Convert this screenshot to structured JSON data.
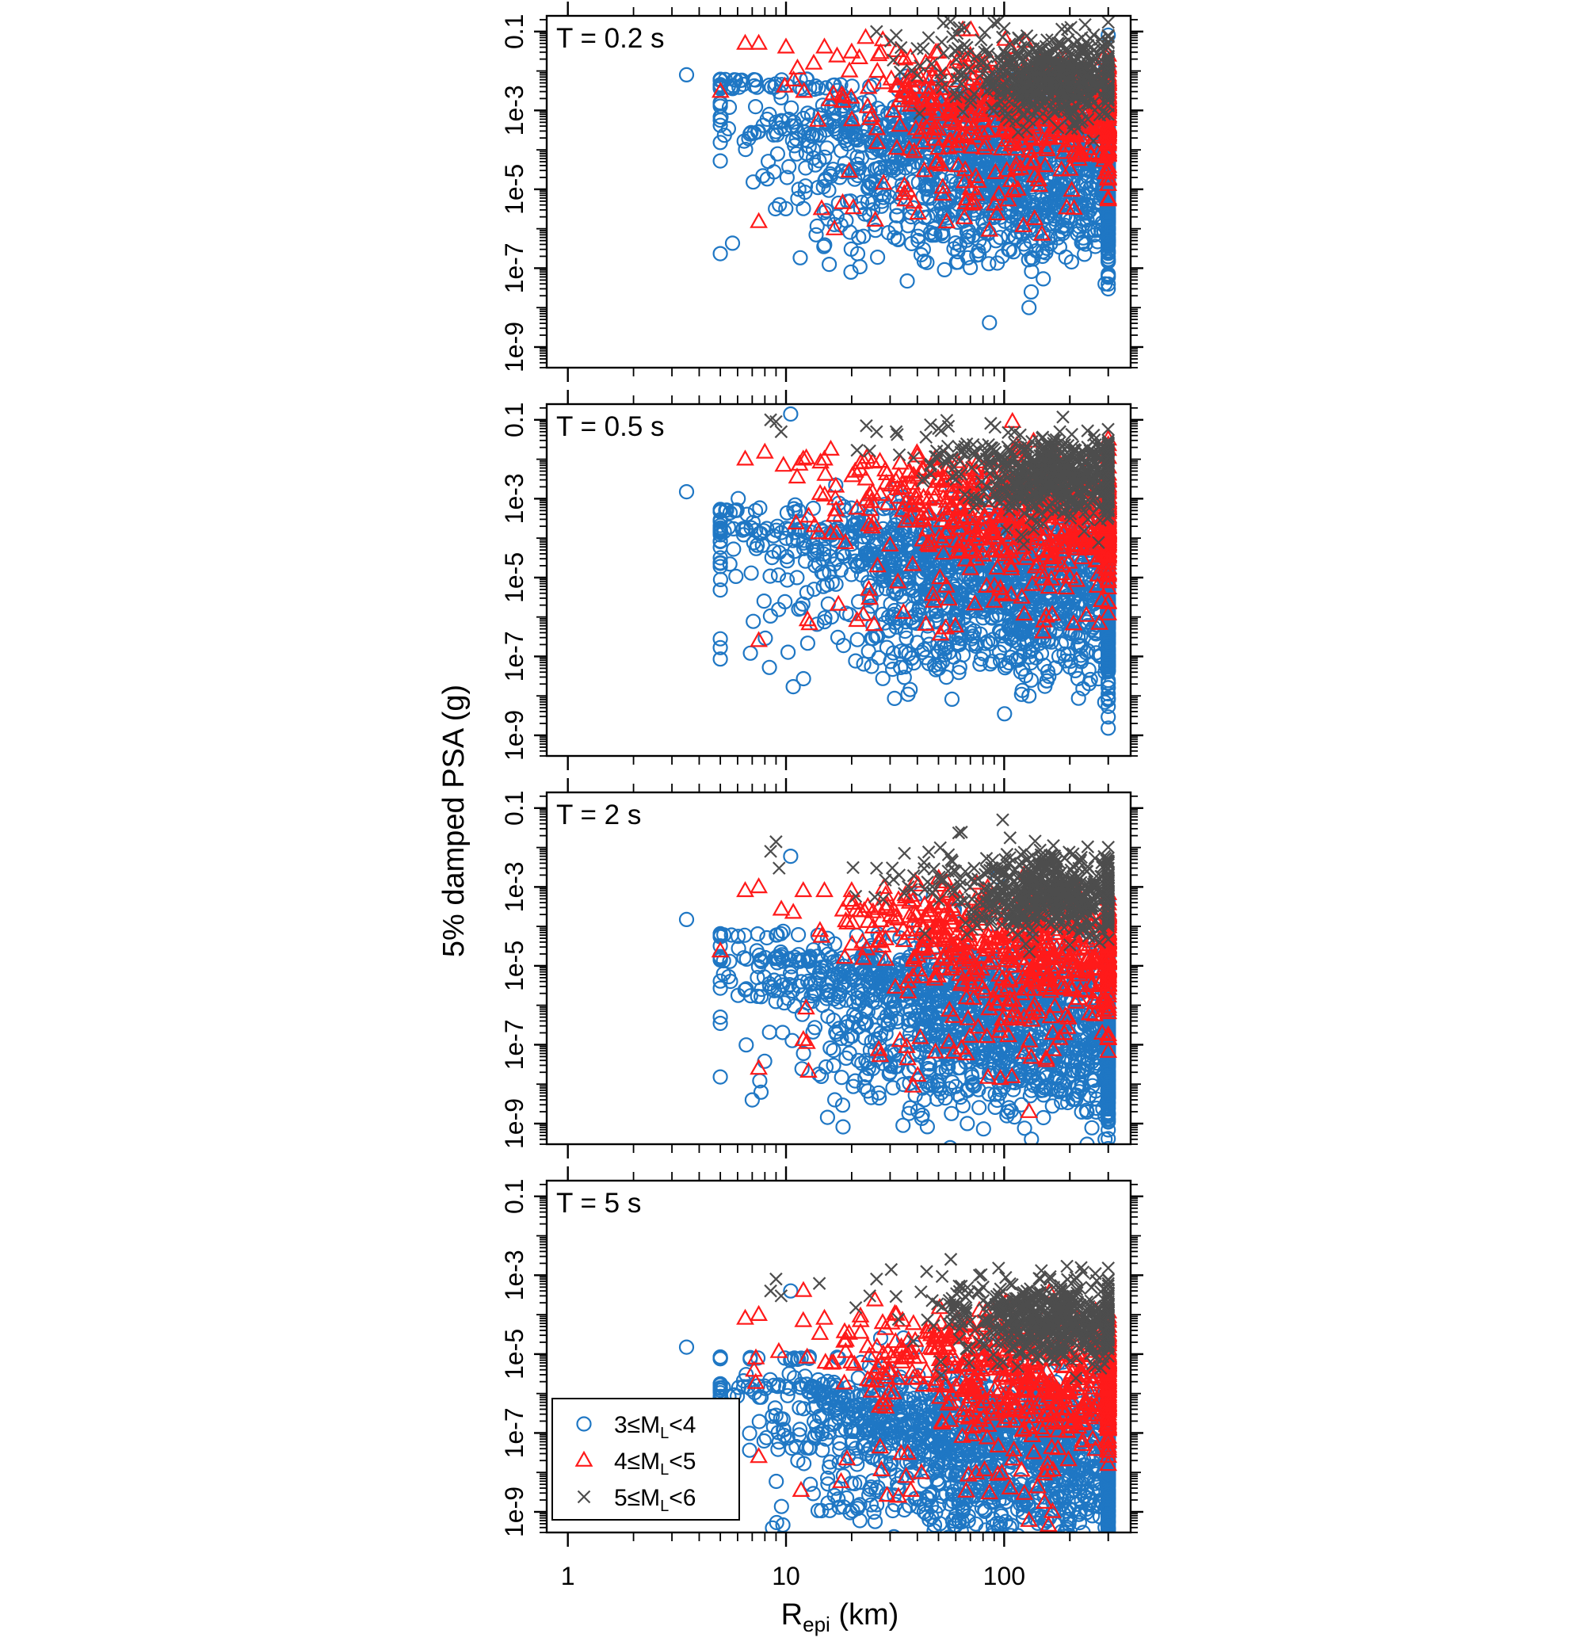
{
  "chart_data": {
    "type": "scatter",
    "xlabel": "R",
    "xlabel_sub": "epi",
    "xlabel_unit": " (km)",
    "ylabel": "5% damped PSA (g)",
    "x_scale": "log",
    "y_scale": "log",
    "xlim": [
      0.8,
      380
    ],
    "ylim": [
      3e-10,
      0.25
    ],
    "x_ticks": [
      1,
      10,
      100
    ],
    "x_tick_labels": [
      "1",
      "10",
      "100"
    ],
    "y_ticks": [
      0.1,
      0.001,
      1e-05,
      1e-07,
      1e-09
    ],
    "y_tick_labels": [
      "0.1",
      "1e-3",
      "1e-5",
      "1e-7",
      "1e-9"
    ],
    "grid": false,
    "legend_position": "bottom-left",
    "legend": [
      {
        "pre": "3≤M",
        "sub": "L",
        "post": "<4",
        "marker": "circle",
        "color": "#1F77C4"
      },
      {
        "pre": "4≤M",
        "sub": "L",
        "post": "<5",
        "marker": "triangle",
        "color": "#FF1A1A"
      },
      {
        "pre": "5≤M",
        "sub": "L",
        "post": "<6",
        "marker": "cross",
        "color": "#4D4D4D"
      }
    ],
    "panels": [
      {
        "label": "T = 0.2 s",
        "series": [
          {
            "marker": "circle",
            "color": "#1F77C4",
            "clusters": [
              [
                5,
                0.006,
                2.5,
                0.01,
                20
              ],
              [
                10,
                0.004,
                3,
                0.04,
                40
              ],
              [
                40,
                0.0004,
                3.5,
                0.5,
                350
              ],
              [
                150,
                3e-05,
                4,
                1,
                1100
              ],
              [
                180,
                1e-06,
                5,
                0.5,
                140
              ]
            ],
            "points": [
              [
                3.5,
                0.008
              ],
              [
                5.5,
                0.0012
              ],
              [
                25,
                3e-06
              ],
              [
                25,
                4.5e-06
              ],
              [
                43,
                1.5e-07
              ],
              [
                85,
                1.3e-07
              ],
              [
                130,
                1e-08
              ],
              [
                133,
                2.5e-08
              ],
              [
                150,
                2e-07
              ],
              [
                290,
                4e-08
              ]
            ]
          },
          {
            "marker": "triangle",
            "color": "#FF1A1A",
            "clusters": [
              [
                60,
                0.004,
                3,
                0.5,
                150
              ],
              [
                180,
                0.0007,
                3,
                0.8,
                450
              ],
              [
                60,
                4e-06,
                3,
                0.4,
                30
              ]
            ],
            "points": [
              [
                6.5,
                0.05
              ],
              [
                7.5,
                0.05
              ],
              [
                10,
                0.04
              ],
              [
                15,
                0.04
              ],
              [
                20,
                0.03
              ],
              [
                35,
                0.02
              ],
              [
                7.5,
                1.5e-06
              ]
            ]
          },
          {
            "marker": "cross",
            "color": "#4D4D4D",
            "clusters": [
              [
                170,
                0.006,
                1.7,
                0.5,
                550
              ],
              [
                60,
                0.03,
                2,
                0.4,
                40
              ]
            ],
            "points": [
              [
                26,
                0.1
              ],
              [
                32,
                0.08
              ],
              [
                45,
                0.07
              ],
              [
                100,
                0.12
              ]
            ]
          }
        ]
      },
      {
        "label": "T = 0.5 s",
        "series": [
          {
            "marker": "circle",
            "color": "#1F77C4",
            "clusters": [
              [
                6.5,
                0.0005,
                2.5,
                0.02,
                20
              ],
              [
                9,
                0.00015,
                2.5,
                0.05,
                40
              ],
              [
                40,
                7e-05,
                3.5,
                0.5,
                350
              ],
              [
                150,
                5e-06,
                4,
                1,
                1100
              ],
              [
                180,
                2e-07,
                5,
                0.5,
                140
              ]
            ],
            "points": [
              [
                3.5,
                0.0015
              ],
              [
                10.5,
                0.14
              ],
              [
                25,
                6e-07
              ],
              [
                43,
                1.5e-07
              ],
              [
                130,
                1e-08
              ],
              [
                133,
                2.5e-08
              ],
              [
                290,
                4e-08
              ]
            ]
          },
          {
            "marker": "triangle",
            "color": "#FF1A1A",
            "clusters": [
              [
                60,
                0.002,
                3,
                0.5,
                150
              ],
              [
                180,
                0.0002,
                3,
                0.8,
                450
              ],
              [
                60,
                1e-06,
                3,
                0.4,
                30
              ]
            ],
            "points": [
              [
                6.5,
                0.01
              ],
              [
                8,
                0.015
              ],
              [
                12,
                0.01
              ],
              [
                15,
                0.01
              ],
              [
                22,
                0.008
              ],
              [
                40,
                0.012
              ],
              [
                7.5,
                2.5e-07
              ]
            ]
          },
          {
            "marker": "cross",
            "color": "#4D4D4D",
            "clusters": [
              [
                170,
                0.004,
                1.7,
                0.5,
                550
              ],
              [
                60,
                0.015,
                2,
                0.4,
                40
              ]
            ],
            "points": [
              [
                8.5,
                0.1
              ],
              [
                9,
                0.09
              ],
              [
                9.5,
                0.05
              ],
              [
                26,
                0.05
              ],
              [
                32,
                0.05
              ],
              [
                50,
                0.06
              ],
              [
                180,
                0.05
              ]
            ]
          }
        ]
      },
      {
        "label": "T = 2 s",
        "series": [
          {
            "marker": "circle",
            "color": "#1F77C4",
            "clusters": [
              [
                7,
                6e-05,
                2.5,
                0.02,
                20
              ],
              [
                9,
                1.5e-05,
                2.5,
                0.05,
                40
              ],
              [
                40,
                4e-06,
                3.5,
                0.5,
                350
              ],
              [
                150,
                3e-07,
                4,
                1,
                1100
              ],
              [
                180,
                1e-08,
                5,
                0.5,
                140
              ]
            ],
            "points": [
              [
                3.5,
                0.00015
              ],
              [
                10.5,
                0.006
              ],
              [
                25,
                2.5e-08
              ],
              [
                43,
                4e-09
              ],
              [
                120,
                3e-09
              ],
              [
                240,
                3e-10
              ],
              [
                290,
                4e-10
              ]
            ]
          },
          {
            "marker": "triangle",
            "color": "#FF1A1A",
            "clusters": [
              [
                60,
                0.00015,
                3,
                0.5,
                150
              ],
              [
                180,
                1.5e-05,
                3,
                0.8,
                450
              ],
              [
                60,
                8e-08,
                3,
                0.4,
                30
              ]
            ],
            "points": [
              [
                6.5,
                0.0008
              ],
              [
                7.5,
                0.001
              ],
              [
                12,
                0.0008
              ],
              [
                15,
                0.0008
              ],
              [
                20,
                0.0008
              ],
              [
                7.5,
                2.5e-08
              ],
              [
                130,
                2e-09
              ]
            ]
          },
          {
            "marker": "cross",
            "color": "#4D4D4D",
            "clusters": [
              [
                170,
                0.0006,
                1.7,
                0.5,
                550
              ],
              [
                60,
                0.002,
                2,
                0.4,
                40
              ]
            ],
            "points": [
              [
                8.5,
                0.008
              ],
              [
                9,
                0.014
              ],
              [
                9.3,
                0.003
              ],
              [
                26,
                0.003
              ],
              [
                33,
                0.002
              ],
              [
                180,
                0.004
              ],
              [
                300,
                0.003
              ]
            ]
          }
        ]
      },
      {
        "label": "T = 5 s",
        "series": [
          {
            "marker": "circle",
            "color": "#1F77C4",
            "clusters": [
              [
                7,
                8e-06,
                2.5,
                0.02,
                20
              ],
              [
                9,
                1.5e-06,
                2.5,
                0.05,
                40
              ],
              [
                40,
                4e-07,
                3.5,
                0.5,
                350
              ],
              [
                150,
                3e-08,
                4,
                1,
                1100
              ],
              [
                180,
                1e-09,
                5,
                0.5,
                140
              ]
            ],
            "points": [
              [
                3.5,
                1.5e-05
              ],
              [
                10.5,
                0.0004
              ],
              [
                25,
                2.5e-08
              ],
              [
                43,
                1e-09
              ],
              [
                230,
                3e-10
              ],
              [
                290,
                4e-10
              ]
            ]
          },
          {
            "marker": "triangle",
            "color": "#FF1A1A",
            "clusters": [
              [
                60,
                1.5e-05,
                3,
                0.5,
                150
              ],
              [
                180,
                1.5e-06,
                3,
                0.8,
                450
              ],
              [
                60,
                8e-09,
                3,
                0.4,
                30
              ]
            ],
            "points": [
              [
                6.5,
                8e-05
              ],
              [
                7.5,
                0.0001
              ],
              [
                12,
                7e-05
              ],
              [
                15,
                8e-05
              ],
              [
                22,
                7e-05
              ],
              [
                7.5,
                2.5e-08
              ],
              [
                130,
                6e-10
              ]
            ]
          },
          {
            "marker": "cross",
            "color": "#4D4D4D",
            "clusters": [
              [
                170,
                7e-05,
                1.7,
                0.5,
                550
              ],
              [
                60,
                0.0002,
                2,
                0.4,
                40
              ]
            ],
            "points": [
              [
                8.5,
                0.0004
              ],
              [
                9,
                0.0008
              ],
              [
                9.5,
                0.0003
              ],
              [
                26,
                0.0008
              ],
              [
                80,
                0.0005
              ]
            ]
          }
        ]
      }
    ]
  }
}
